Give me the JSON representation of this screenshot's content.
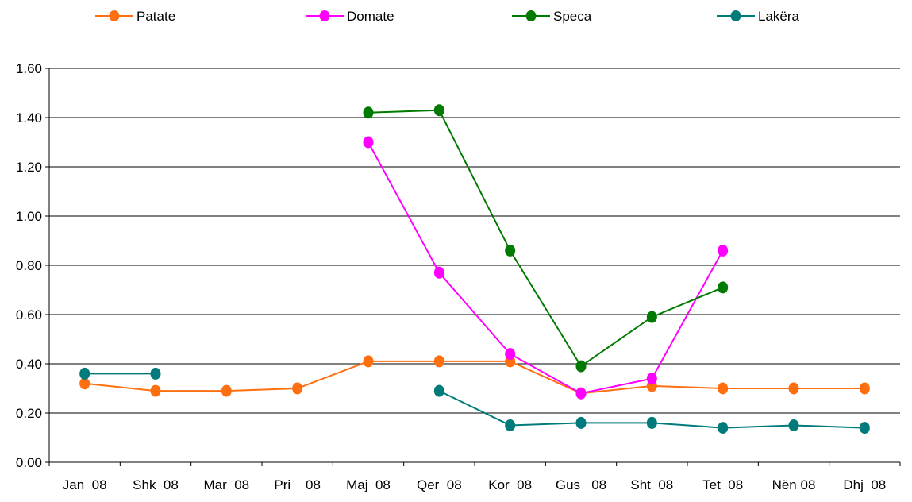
{
  "chart_data": {
    "type": "line",
    "categories": [
      "Jan  08",
      "Shk  08",
      "Mar  08",
      "Pri    08",
      "Maj  08",
      "Qer  08",
      "Kor  08",
      "Gus   08",
      "Sht  08",
      "Tet  08",
      "Nën 08",
      "Dhj  08"
    ],
    "yticks": [
      "0.00",
      "0.20",
      "0.40",
      "0.60",
      "0.80",
      "1.00",
      "1.20",
      "1.40",
      "1.60"
    ],
    "ylim": [
      0,
      1.6
    ],
    "grid": true,
    "legend_position": "top",
    "series": [
      {
        "name": "Patate",
        "color": "#FF6F0F",
        "values": [
          0.32,
          0.29,
          0.29,
          0.3,
          0.41,
          0.41,
          0.41,
          0.28,
          0.31,
          0.3,
          0.3,
          0.3
        ]
      },
      {
        "name": "Domate",
        "color": "#FF00FF",
        "values": [
          null,
          null,
          null,
          null,
          1.3,
          0.77,
          0.44,
          0.28,
          0.34,
          0.86,
          null,
          null
        ]
      },
      {
        "name": "Speca",
        "color": "#007A00",
        "values": [
          null,
          null,
          null,
          null,
          1.42,
          1.43,
          0.86,
          0.39,
          0.59,
          0.71,
          null,
          null
        ]
      },
      {
        "name": "Lakëra",
        "color": "#007A7A",
        "values": [
          0.36,
          0.36,
          null,
          null,
          null,
          0.29,
          0.15,
          0.16,
          0.16,
          0.14,
          0.15,
          0.14
        ]
      }
    ]
  }
}
